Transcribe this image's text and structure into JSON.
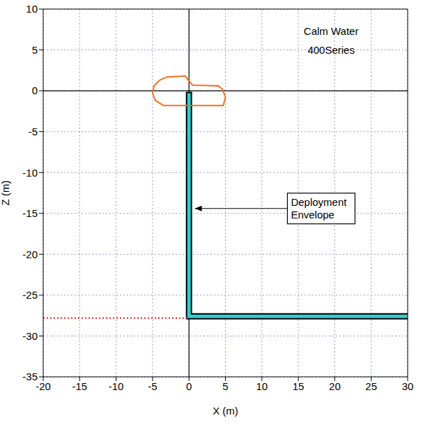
{
  "chart_data": {
    "type": "line",
    "xlabel": "X (m)",
    "ylabel": "Z (m)",
    "xlim": [
      -20,
      30
    ],
    "xticks": [
      -20,
      -15,
      -10,
      -5,
      0,
      5,
      10,
      15,
      20,
      25,
      30
    ],
    "ylim": [
      -35,
      10
    ],
    "yticks": [
      -35,
      -30,
      -25,
      -20,
      -15,
      -10,
      -5,
      0,
      5,
      10
    ],
    "grid": true,
    "tick_labels": true,
    "reference_lines": {
      "x": [
        0
      ],
      "y": [
        0
      ]
    },
    "series": [
      {
        "color": "#33cccc",
        "line_style": "band",
        "x": [
          0,
          0,
          30
        ],
        "values": [
          -0.5,
          -27.6,
          -27.6
        ]
      },
      {
        "color": "#f07020",
        "line_style": "solid",
        "x": [
          -3.5,
          -4.6,
          -5,
          -4.8,
          -4,
          -3,
          -0.5,
          0,
          0.5,
          4,
          4.6,
          5,
          4.7,
          -3.5
        ],
        "values": [
          -1.8,
          -1.2,
          -0.3,
          0.6,
          1.3,
          1.7,
          1.8,
          1.2,
          0.7,
          0.6,
          0.2,
          -0.8,
          -1.8,
          -1.8
        ]
      },
      {
        "color": "#e02020",
        "line_style": "dotted",
        "x": [
          -20,
          0
        ],
        "values": [
          -27.8,
          -27.8
        ]
      }
    ],
    "annotations": [
      {
        "text": "Calm Water",
        "x": 19.5,
        "y": 7.2
      },
      {
        "text": "400Series",
        "x": 19.5,
        "y": 4.9
      },
      {
        "text": "Deployment Envelope",
        "x": 13.5,
        "y": -14.4,
        "arrow_to": [
          0.8,
          -14.4
        ]
      }
    ]
  }
}
